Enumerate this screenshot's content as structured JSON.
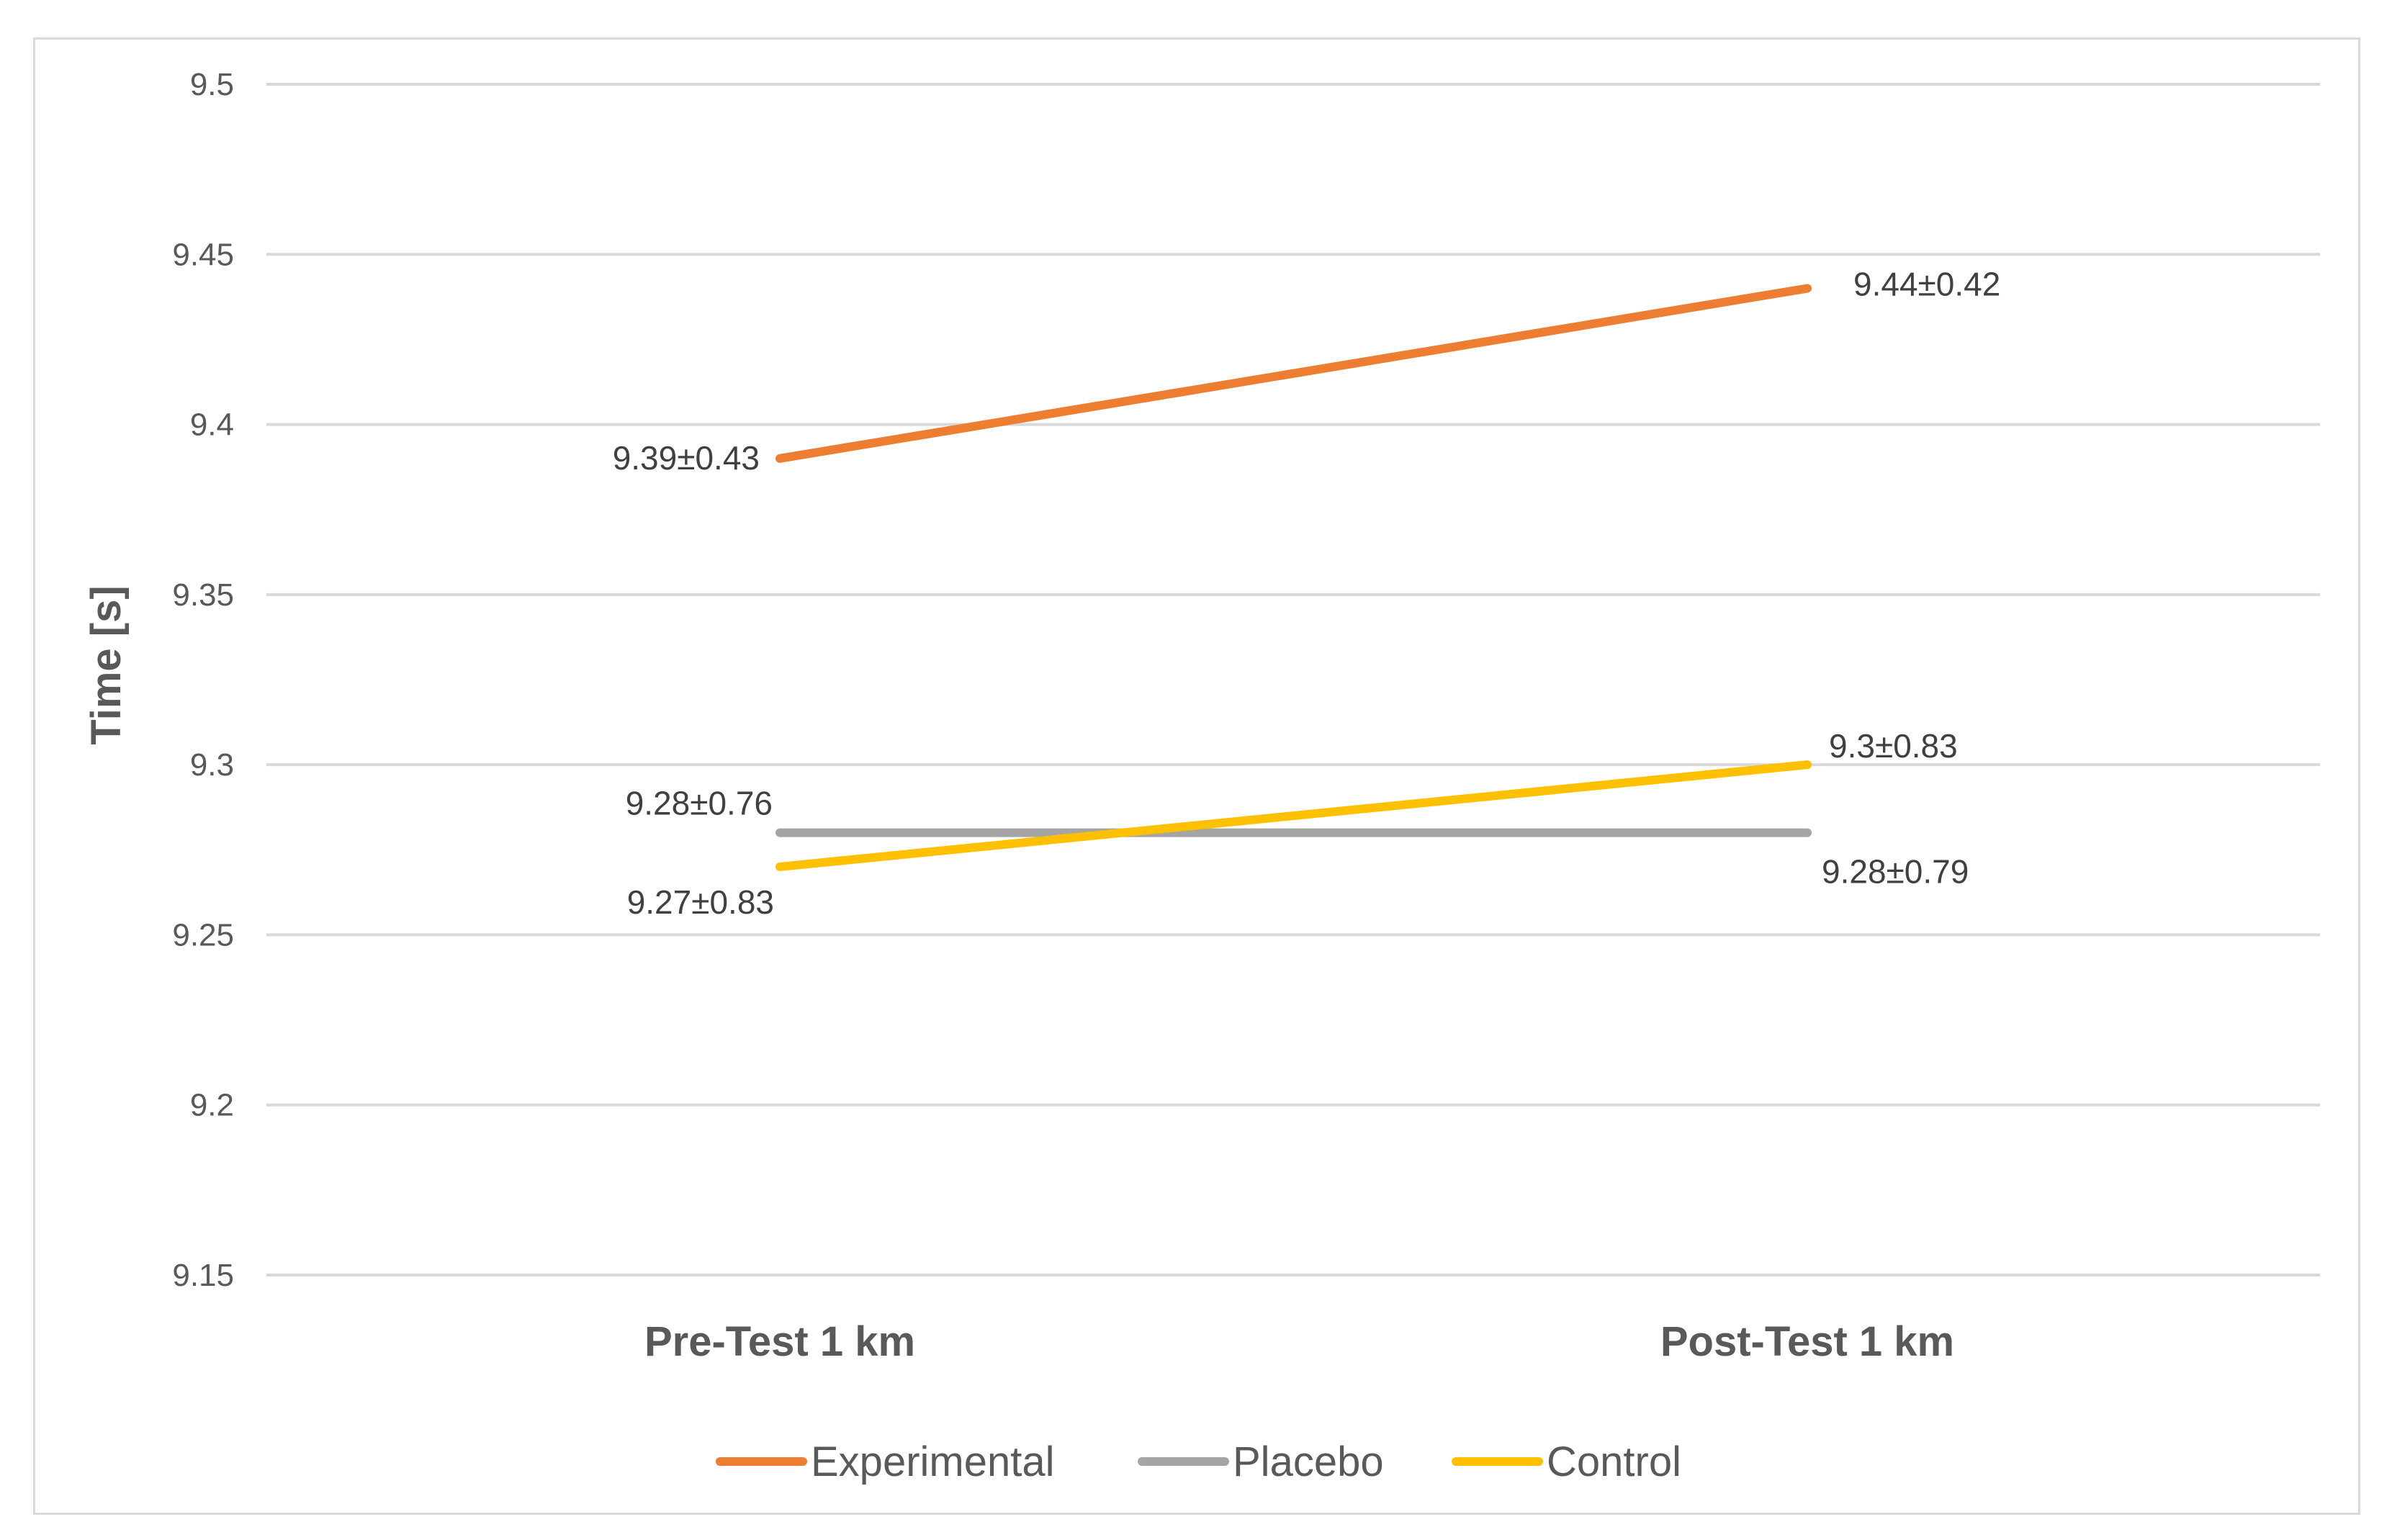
{
  "chart_data": {
    "type": "line",
    "categories": [
      "Pre-Test 1 km",
      "Post-Test 1 km"
    ],
    "ylabel": "Time [s]",
    "ylim": [
      9.15,
      9.5
    ],
    "yticks": [
      "9.5",
      "9.45",
      "9.4",
      "9.35",
      "9.3",
      "9.25",
      "9.2",
      "9.15"
    ],
    "grid": true,
    "legend_position": "bottom",
    "series": [
      {
        "name": "Experimental",
        "values": [
          9.39,
          9.44
        ],
        "labels": [
          "9.39±0.43",
          "9.44±0.42"
        ],
        "color": "#ED7D31"
      },
      {
        "name": "Placebo",
        "values": [
          9.28,
          9.28
        ],
        "labels": [
          "9.28±0.76",
          "9.28±0.79"
        ],
        "color": "#A5A5A5"
      },
      {
        "name": "Control",
        "values": [
          9.27,
          9.3
        ],
        "labels": [
          "9.27±0.83",
          "9.3±0.83"
        ],
        "color": "#FFC000"
      }
    ]
  }
}
